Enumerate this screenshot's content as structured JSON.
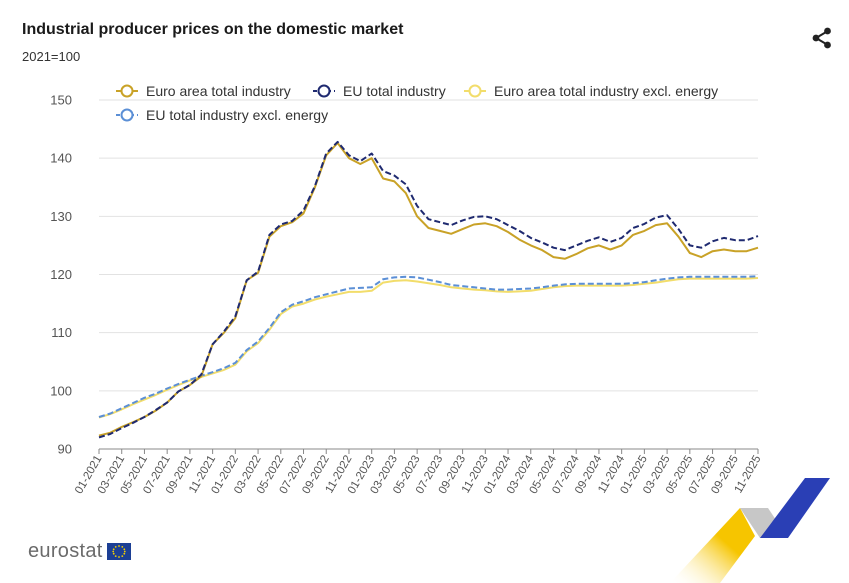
{
  "header": {
    "title": "Industrial producer prices on the domestic market",
    "subtitle": "2021=100"
  },
  "logo": {
    "text": "eurostat"
  },
  "colors": {
    "euro_area_total": "#c9a227",
    "eu_total": "#1f2a70",
    "euro_area_excl": "#f2dd6b",
    "eu_excl": "#5b8fd6",
    "grid": "#e2e2e2",
    "axis": "#888888"
  },
  "chart_data": {
    "type": "line",
    "title": "Industrial producer prices on the domestic market",
    "subtitle": "2021=100",
    "xlabel": "",
    "ylabel": "",
    "ylim": [
      90,
      150
    ],
    "yticks": [
      90,
      100,
      110,
      120,
      130,
      140,
      150
    ],
    "grid": true,
    "legend_position": "top",
    "x": [
      "01-2021",
      "02-2021",
      "03-2021",
      "04-2021",
      "05-2021",
      "06-2021",
      "07-2021",
      "08-2021",
      "09-2021",
      "10-2021",
      "11-2021",
      "12-2021",
      "01-2022",
      "02-2022",
      "03-2022",
      "04-2022",
      "05-2022",
      "06-2022",
      "07-2022",
      "08-2022",
      "09-2022",
      "10-2022",
      "11-2022",
      "12-2022",
      "01-2023",
      "02-2023",
      "03-2023",
      "04-2023",
      "05-2023",
      "06-2023",
      "07-2023",
      "08-2023",
      "09-2023",
      "10-2023",
      "11-2023",
      "12-2023",
      "01-2024",
      "02-2024",
      "03-2024",
      "04-2024",
      "05-2024",
      "06-2024",
      "07-2024",
      "08-2024",
      "09-2024",
      "10-2024",
      "11-2024",
      "12-2024",
      "01-2025",
      "02-2025",
      "03-2025",
      "04-2025",
      "05-2025",
      "06-2025",
      "07-2025",
      "08-2025",
      "09-2025",
      "10-2025",
      "11-2025"
    ],
    "xtick_labels": [
      "01-2021",
      "03-2021",
      "05-2021",
      "07-2021",
      "09-2021",
      "11-2021",
      "01-2022",
      "03-2022",
      "05-2022",
      "07-2022",
      "09-2022",
      "11-2022",
      "01-2023",
      "03-2023",
      "05-2023",
      "07-2023",
      "09-2023",
      "11-2023",
      "01-2024",
      "03-2024",
      "05-2024",
      "07-2024",
      "09-2024",
      "11-2024",
      "01-2025",
      "03-2025",
      "05-2025",
      "07-2025",
      "09-2025",
      "11-2025"
    ],
    "series": [
      {
        "name": "Euro area total industry",
        "color": "#c9a227",
        "dash": "solid",
        "values": [
          92.3,
          92.8,
          93.8,
          94.6,
          95.5,
          96.6,
          98.0,
          99.9,
          101.0,
          102.5,
          108.0,
          110.0,
          112.5,
          119.0,
          120.3,
          126.5,
          128.3,
          129.0,
          130.5,
          135.0,
          140.5,
          142.6,
          140.0,
          139.0,
          140.0,
          136.5,
          136.0,
          134.0,
          130.0,
          128.0,
          127.5,
          127.0,
          127.8,
          128.6,
          128.8,
          128.3,
          127.3,
          126.0,
          125.0,
          124.2,
          123.0,
          122.7,
          123.5,
          124.5,
          125.0,
          124.3,
          125.0,
          126.8,
          127.5,
          128.5,
          128.8,
          126.5,
          123.7,
          123.0,
          124.0,
          124.3,
          124.0,
          124.0,
          124.6
        ]
      },
      {
        "name": "EU total industry",
        "color": "#1f2a70",
        "dash": "dashed",
        "values": [
          92.0,
          92.6,
          93.6,
          94.5,
          95.5,
          96.7,
          98.0,
          99.9,
          101.0,
          102.8,
          108.0,
          110.2,
          112.8,
          119.0,
          120.5,
          126.8,
          128.6,
          129.2,
          131.0,
          135.2,
          140.8,
          142.8,
          140.5,
          139.5,
          140.8,
          137.8,
          137.0,
          135.5,
          131.8,
          129.5,
          129.0,
          128.5,
          129.3,
          129.9,
          130.0,
          129.5,
          128.5,
          127.5,
          126.3,
          125.5,
          124.6,
          124.2,
          125.0,
          125.8,
          126.4,
          125.6,
          126.3,
          128.0,
          128.7,
          129.8,
          130.2,
          127.8,
          125.0,
          124.6,
          125.7,
          126.3,
          125.9,
          125.9,
          126.6
        ]
      },
      {
        "name": "Euro area total industry excl. energy",
        "color": "#f2dd6b",
        "dash": "solid",
        "values": [
          95.4,
          96.0,
          96.8,
          97.7,
          98.5,
          99.3,
          100.2,
          101.0,
          101.8,
          102.4,
          103.0,
          103.6,
          104.5,
          106.8,
          108.2,
          110.5,
          113.2,
          114.5,
          115.0,
          115.7,
          116.2,
          116.6,
          117.0,
          117.0,
          117.2,
          118.6,
          118.9,
          119.0,
          118.8,
          118.5,
          118.2,
          117.8,
          117.6,
          117.4,
          117.3,
          117.1,
          117.0,
          117.1,
          117.2,
          117.5,
          117.8,
          118.0,
          118.1,
          118.1,
          118.1,
          118.1,
          118.1,
          118.2,
          118.4,
          118.6,
          118.9,
          119.2,
          119.3,
          119.3,
          119.3,
          119.3,
          119.3,
          119.3,
          119.4
        ]
      },
      {
        "name": "EU total industry excl. energy",
        "color": "#5b8fd6",
        "dash": "dashed",
        "values": [
          95.5,
          96.1,
          97.0,
          97.9,
          98.8,
          99.5,
          100.4,
          101.2,
          101.9,
          102.6,
          103.2,
          103.9,
          104.8,
          107.0,
          108.5,
          110.8,
          113.5,
          114.8,
          115.4,
          116.1,
          116.6,
          117.1,
          117.6,
          117.7,
          117.8,
          119.2,
          119.5,
          119.6,
          119.5,
          119.1,
          118.7,
          118.2,
          118.0,
          117.8,
          117.6,
          117.4,
          117.4,
          117.5,
          117.6,
          117.8,
          118.1,
          118.3,
          118.4,
          118.4,
          118.4,
          118.4,
          118.4,
          118.5,
          118.7,
          119.0,
          119.3,
          119.5,
          119.6,
          119.6,
          119.6,
          119.6,
          119.6,
          119.6,
          119.7
        ]
      }
    ]
  }
}
